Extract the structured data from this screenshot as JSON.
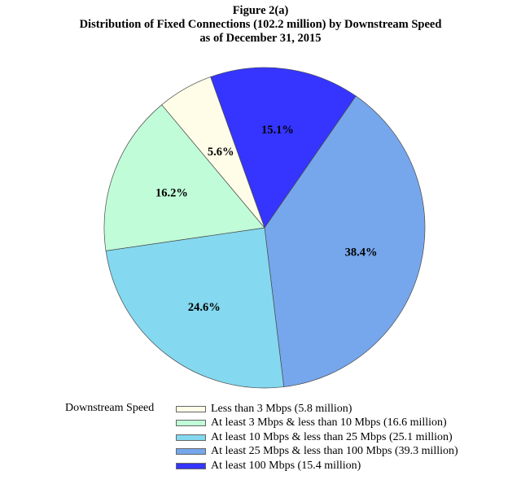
{
  "chart_data": {
    "type": "pie",
    "title": "Figure 2(a)",
    "subtitle": "Distribution of Fixed Connections (102.2 million) by Downstream Speed",
    "subtitle2": "as of December 31, 2015",
    "legend_title": "Downstream Speed",
    "legend_placement": "bottom",
    "slices": [
      {
        "label": "Less than 3 Mbps (5.8 million)",
        "value": 5.6,
        "value_label": "5.6%",
        "color": "#FFFDE8"
      },
      {
        "label": "At least 3 Mbps & less than 10 Mbps (16.6 million)",
        "value": 16.2,
        "value_label": "16.2%",
        "color": "#C0FCD8"
      },
      {
        "label": "At least 10 Mbps & less than 25 Mbps (25.1 million)",
        "value": 24.6,
        "value_label": "24.6%",
        "color": "#84D8EF"
      },
      {
        "label": "At least 25 Mbps & less than 100 Mbps (39.3 million)",
        "value": 38.4,
        "value_label": "38.4%",
        "color": "#76A7EC"
      },
      {
        "label": "At least 100 Mbps (15.4 million)",
        "value": 15.1,
        "value_label": "15.1%",
        "color": "#3535FF"
      }
    ]
  }
}
